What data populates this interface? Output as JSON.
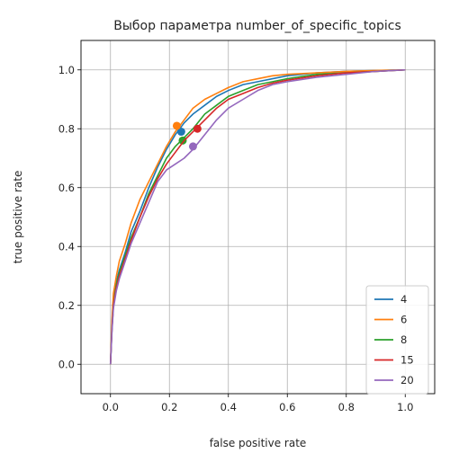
{
  "chart_data": {
    "type": "line",
    "title": "Выбор параметра number_of_specific_topics",
    "xlabel": "false positive rate",
    "ylabel": "true positive rate",
    "xlim": [
      -0.1,
      1.1
    ],
    "ylim": [
      -0.1,
      1.1
    ],
    "xticks": [
      "0.0",
      "0.2",
      "0.4",
      "0.6",
      "0.8",
      "1.0"
    ],
    "yticks": [
      "0.0",
      "0.2",
      "0.4",
      "0.6",
      "0.8",
      "1.0"
    ],
    "xtick_values": [
      0,
      0.2,
      0.4,
      0.6,
      0.8,
      1.0
    ],
    "ytick_values": [
      0,
      0.2,
      0.4,
      0.6,
      0.8,
      1.0
    ],
    "grid": true,
    "legend": "lower-right",
    "series": [
      {
        "name": "4",
        "color": "#1f77b4",
        "x": [
          0,
          0.005,
          0.01,
          0.02,
          0.03,
          0.05,
          0.07,
          0.1,
          0.13,
          0.16,
          0.19,
          0.22,
          0.25,
          0.28,
          0.32,
          0.36,
          0.4,
          0.45,
          0.5,
          0.55,
          0.6,
          0.7,
          0.8,
          0.9,
          1.0
        ],
        "y": [
          0,
          0.13,
          0.22,
          0.28,
          0.32,
          0.38,
          0.45,
          0.52,
          0.6,
          0.67,
          0.73,
          0.78,
          0.82,
          0.85,
          0.88,
          0.91,
          0.93,
          0.95,
          0.96,
          0.97,
          0.98,
          0.99,
          0.995,
          0.998,
          1.0
        ],
        "marker": [
          0.24,
          0.79
        ]
      },
      {
        "name": "6",
        "color": "#ff7f0e",
        "x": [
          0,
          0.005,
          0.01,
          0.02,
          0.03,
          0.05,
          0.07,
          0.1,
          0.13,
          0.16,
          0.19,
          0.22,
          0.25,
          0.28,
          0.32,
          0.36,
          0.4,
          0.45,
          0.5,
          0.55,
          0.6,
          0.7,
          0.8,
          0.9,
          1.0
        ],
        "y": [
          0,
          0.15,
          0.24,
          0.3,
          0.35,
          0.41,
          0.48,
          0.56,
          0.62,
          0.68,
          0.74,
          0.79,
          0.83,
          0.87,
          0.9,
          0.92,
          0.94,
          0.96,
          0.97,
          0.98,
          0.985,
          0.99,
          0.995,
          0.998,
          1.0
        ],
        "marker": [
          0.225,
          0.81
        ]
      },
      {
        "name": "8",
        "color": "#2ca02c",
        "x": [
          0,
          0.005,
          0.01,
          0.02,
          0.03,
          0.05,
          0.07,
          0.1,
          0.13,
          0.16,
          0.19,
          0.22,
          0.25,
          0.28,
          0.32,
          0.36,
          0.4,
          0.45,
          0.5,
          0.55,
          0.6,
          0.7,
          0.8,
          0.9,
          1.0
        ],
        "y": [
          0,
          0.12,
          0.2,
          0.27,
          0.31,
          0.37,
          0.43,
          0.5,
          0.58,
          0.64,
          0.7,
          0.74,
          0.77,
          0.8,
          0.85,
          0.88,
          0.91,
          0.93,
          0.95,
          0.96,
          0.97,
          0.985,
          0.99,
          0.995,
          1.0
        ],
        "marker": [
          0.245,
          0.76
        ]
      },
      {
        "name": "15",
        "color": "#d62728",
        "x": [
          0,
          0.005,
          0.01,
          0.02,
          0.03,
          0.05,
          0.07,
          0.1,
          0.13,
          0.16,
          0.19,
          0.22,
          0.25,
          0.28,
          0.32,
          0.36,
          0.4,
          0.45,
          0.5,
          0.55,
          0.6,
          0.7,
          0.8,
          0.9,
          1.0
        ],
        "y": [
          0,
          0.12,
          0.2,
          0.26,
          0.3,
          0.36,
          0.42,
          0.5,
          0.57,
          0.63,
          0.68,
          0.72,
          0.76,
          0.79,
          0.83,
          0.87,
          0.9,
          0.92,
          0.94,
          0.955,
          0.965,
          0.98,
          0.99,
          0.995,
          1.0
        ],
        "marker": [
          0.295,
          0.8
        ]
      },
      {
        "name": "20",
        "color": "#9467bd",
        "x": [
          0,
          0.005,
          0.01,
          0.02,
          0.03,
          0.05,
          0.07,
          0.1,
          0.13,
          0.16,
          0.19,
          0.22,
          0.25,
          0.28,
          0.32,
          0.36,
          0.4,
          0.45,
          0.5,
          0.55,
          0.6,
          0.7,
          0.8,
          0.9,
          1.0
        ],
        "y": [
          0,
          0.11,
          0.19,
          0.25,
          0.29,
          0.35,
          0.41,
          0.48,
          0.55,
          0.62,
          0.66,
          0.68,
          0.7,
          0.73,
          0.78,
          0.83,
          0.87,
          0.9,
          0.93,
          0.95,
          0.96,
          0.975,
          0.985,
          0.995,
          1.0
        ],
        "marker": [
          0.28,
          0.74
        ]
      }
    ]
  }
}
